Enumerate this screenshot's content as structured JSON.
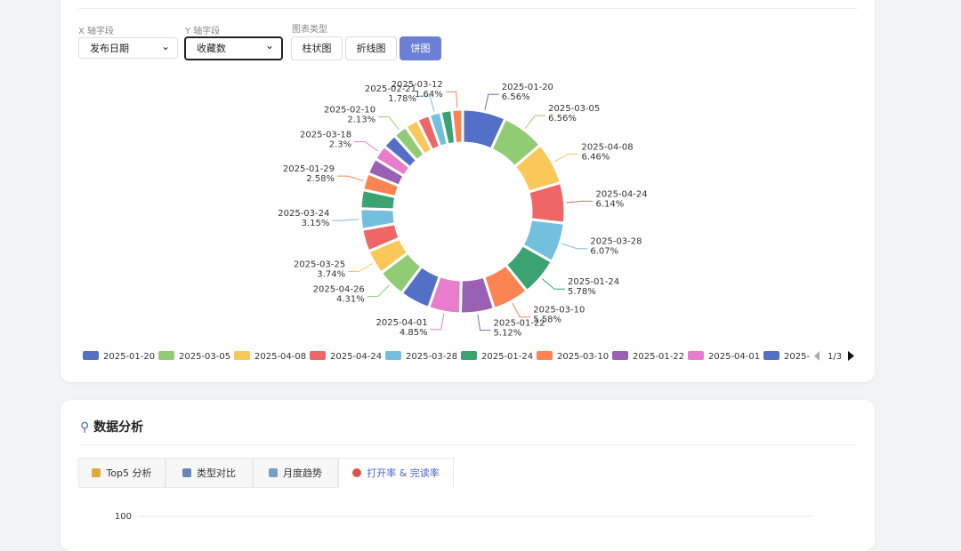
{
  "controls": {
    "x_label": "X 轴字段",
    "x_value": "发布日期",
    "y_label": "Y 轴字段",
    "y_value": "收藏数",
    "type_label": "图表类型",
    "buttons": [
      "柱状图",
      "折线图",
      "饼图"
    ]
  },
  "chart_data": {
    "type": "pie",
    "categories": [
      "2025-01-20",
      "2025-03-05",
      "2025-04-08",
      "2025-04-24",
      "2025-03-28",
      "2025-01-24",
      "2025-03-10",
      "2025-01-22",
      "2025-04-01",
      null,
      "2025-04-26",
      "2025-03-25",
      null,
      "2025-03-24",
      null,
      "2025-01-29",
      null,
      "2025-03-18",
      null,
      "2025-02-10",
      null,
      null,
      "2025-02-21",
      null,
      "2025-03-12"
    ],
    "values": [
      6.56,
      6.56,
      6.46,
      6.14,
      6.07,
      5.78,
      5.58,
      5.12,
      4.85,
      4.6,
      4.31,
      3.74,
      3.4,
      3.15,
      2.85,
      2.58,
      2.45,
      2.3,
      2.2,
      2.13,
      2.0,
      1.9,
      1.78,
      1.7,
      1.64
    ],
    "value_labels": [
      "6.56%",
      "6.56%",
      "6.46%",
      "6.14%",
      "6.07%",
      "5.78%",
      "5.58%",
      "5.12%",
      "4.85%",
      null,
      "4.31%",
      "3.74%",
      null,
      "3.15%",
      null,
      "2.58%",
      null,
      "2.3%",
      null,
      "2.13%",
      null,
      null,
      "1.78%",
      null,
      "1.64%"
    ],
    "colors": [
      "#5470c6",
      "#91cc75",
      "#fac858",
      "#ee6666",
      "#73c0de",
      "#3ba272",
      "#fc8452",
      "#9a60b4",
      "#ea7ccc"
    ],
    "legend": {
      "overflow_label": "2025-",
      "page": "1/3"
    }
  },
  "analysis": {
    "title": "数据分析",
    "tabs": [
      "Top5 分析",
      "类型对比",
      "月度趋势",
      "打开率 & 完读率"
    ],
    "chart": {
      "yticks": [
        100
      ]
    }
  }
}
